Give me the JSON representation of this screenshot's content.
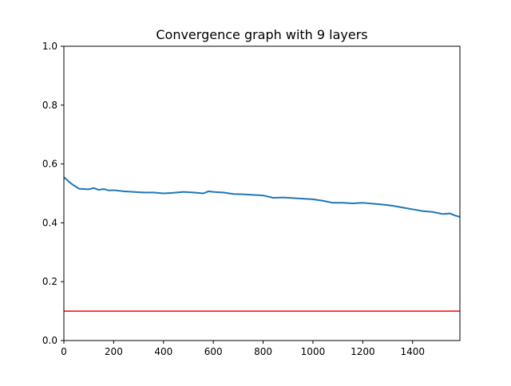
{
  "chart_data": {
    "type": "line",
    "title": "Convergence graph with 9 layers",
    "xlabel": "",
    "ylabel": "",
    "xlim": [
      0,
      1590
    ],
    "ylim": [
      0.0,
      1.0
    ],
    "x_ticks": [
      0,
      200,
      400,
      600,
      800,
      1000,
      1200,
      1400
    ],
    "y_ticks": [
      0.0,
      0.2,
      0.4,
      0.6,
      0.8,
      1.0
    ],
    "x_tick_labels": [
      "0",
      "200",
      "400",
      "600",
      "800",
      "1000",
      "1200",
      "1400"
    ],
    "y_tick_labels": [
      "0.0",
      "0.2",
      "0.4",
      "0.6",
      "0.8",
      "1.0"
    ],
    "grid": false,
    "legend": "none",
    "series": [
      {
        "color": "#1f77b4",
        "x": [
          0,
          10,
          20,
          30,
          40,
          50,
          60,
          80,
          100,
          120,
          140,
          160,
          180,
          200,
          240,
          280,
          320,
          360,
          400,
          440,
          480,
          520,
          560,
          580,
          600,
          640,
          680,
          720,
          760,
          800,
          840,
          880,
          920,
          960,
          1000,
          1040,
          1080,
          1120,
          1160,
          1200,
          1240,
          1280,
          1320,
          1360,
          1400,
          1440,
          1480,
          1520,
          1550,
          1570,
          1590
        ],
        "y": [
          0.555,
          0.548,
          0.54,
          0.533,
          0.527,
          0.522,
          0.516,
          0.515,
          0.514,
          0.518,
          0.512,
          0.515,
          0.51,
          0.511,
          0.507,
          0.505,
          0.503,
          0.503,
          0.5,
          0.502,
          0.505,
          0.503,
          0.5,
          0.507,
          0.505,
          0.503,
          0.498,
          0.497,
          0.495,
          0.493,
          0.485,
          0.486,
          0.484,
          0.482,
          0.48,
          0.475,
          0.468,
          0.468,
          0.466,
          0.468,
          0.465,
          0.462,
          0.458,
          0.452,
          0.446,
          0.44,
          0.437,
          0.43,
          0.432,
          0.425,
          0.42
        ]
      },
      {
        "color": "#ff0000",
        "x": [
          0,
          1590
        ],
        "y": [
          0.1,
          0.1
        ]
      }
    ]
  }
}
